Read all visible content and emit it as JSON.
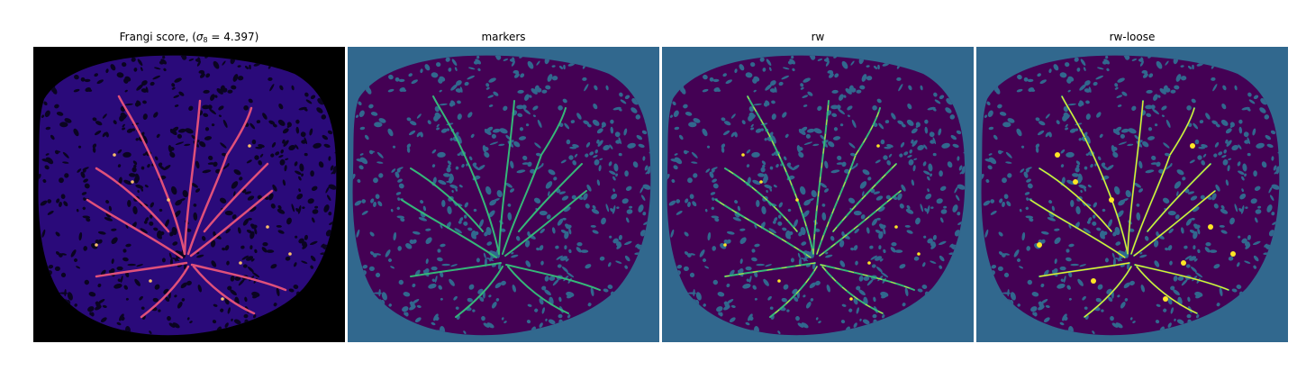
{
  "panels": [
    {
      "title_prefix": "Frangi score, (",
      "title_sigma": "σ",
      "title_sub": "8",
      "title_suffix": " = 4.397)",
      "colormap": "magma",
      "background": "#000000",
      "blob": "#2a0a7a",
      "pattern": "#0a0420",
      "vessel": "#e0507a",
      "highlight": "#fcc06a"
    },
    {
      "title": "markers",
      "background": "#31688e",
      "blob": "#440154",
      "pattern": "#31688e",
      "vessel": "#35b779",
      "highlight": "#35b779"
    },
    {
      "title": "rw",
      "background": "#31688e",
      "blob": "#440154",
      "pattern": "#31688e",
      "vessel": "#35b779",
      "highlight": "#fde725"
    },
    {
      "title": "rw-loose",
      "background": "#31688e",
      "blob": "#440154",
      "pattern": "#31688e",
      "vessel": "#35b779",
      "highlight": "#fde725"
    }
  ]
}
